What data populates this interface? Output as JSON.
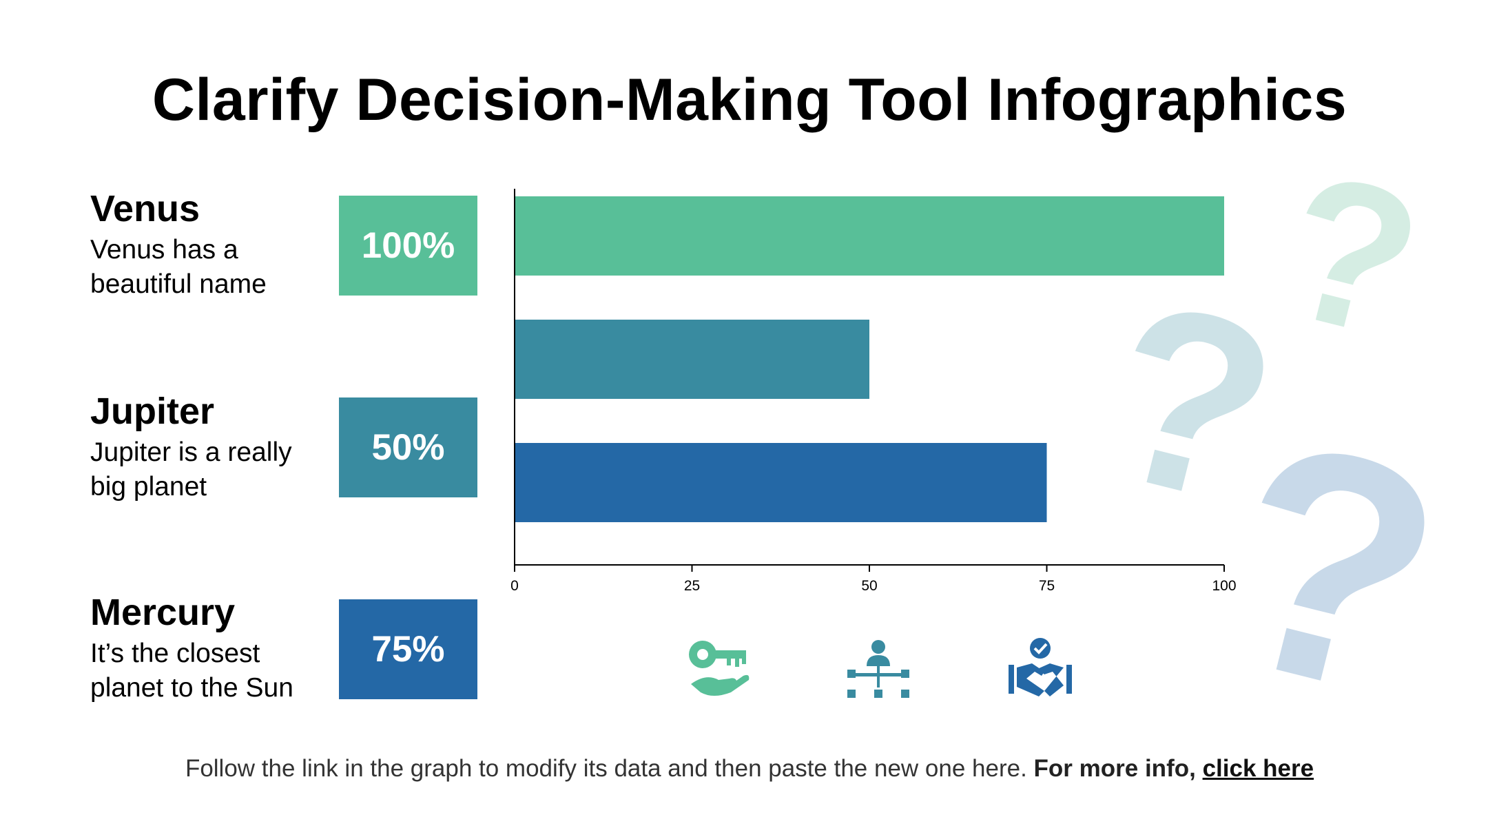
{
  "title": "Clarify Decision-Making Tool Infographics",
  "items": [
    {
      "name": "Venus",
      "desc_line1": "Venus has a",
      "desc_line2": "beautiful name",
      "badge": "100%"
    },
    {
      "name": "Jupiter",
      "desc_line1": "Jupiter is a really",
      "desc_line2": "big planet",
      "badge": "50%"
    },
    {
      "name": "Mercury",
      "desc_line1": "It’s the closest",
      "desc_line2": "planet to the Sun",
      "badge": "75%"
    }
  ],
  "colors": {
    "green": "#58bf98",
    "teal": "#398ba0",
    "blue": "#2468a6",
    "q_green": "#d5ede3",
    "q_teal": "#cde2e7",
    "q_blue": "#c8d9e9"
  },
  "icons": [
    "key-hand-icon",
    "org-chart-icon",
    "handshake-check-icon"
  ],
  "chart_data": {
    "type": "bar",
    "orientation": "horizontal",
    "values": [
      100,
      50,
      75
    ],
    "colors": [
      "#58bf98",
      "#398ba0",
      "#2468a6"
    ],
    "xlim": [
      0,
      100
    ],
    "ticks": [
      "0",
      "25",
      "50",
      "75",
      "100"
    ],
    "grid": false
  },
  "question_mark": "?",
  "footer": {
    "text": "Follow the link in the graph to modify its data and then paste the new one here.",
    "strong": "For more info,",
    "link": "click here"
  }
}
